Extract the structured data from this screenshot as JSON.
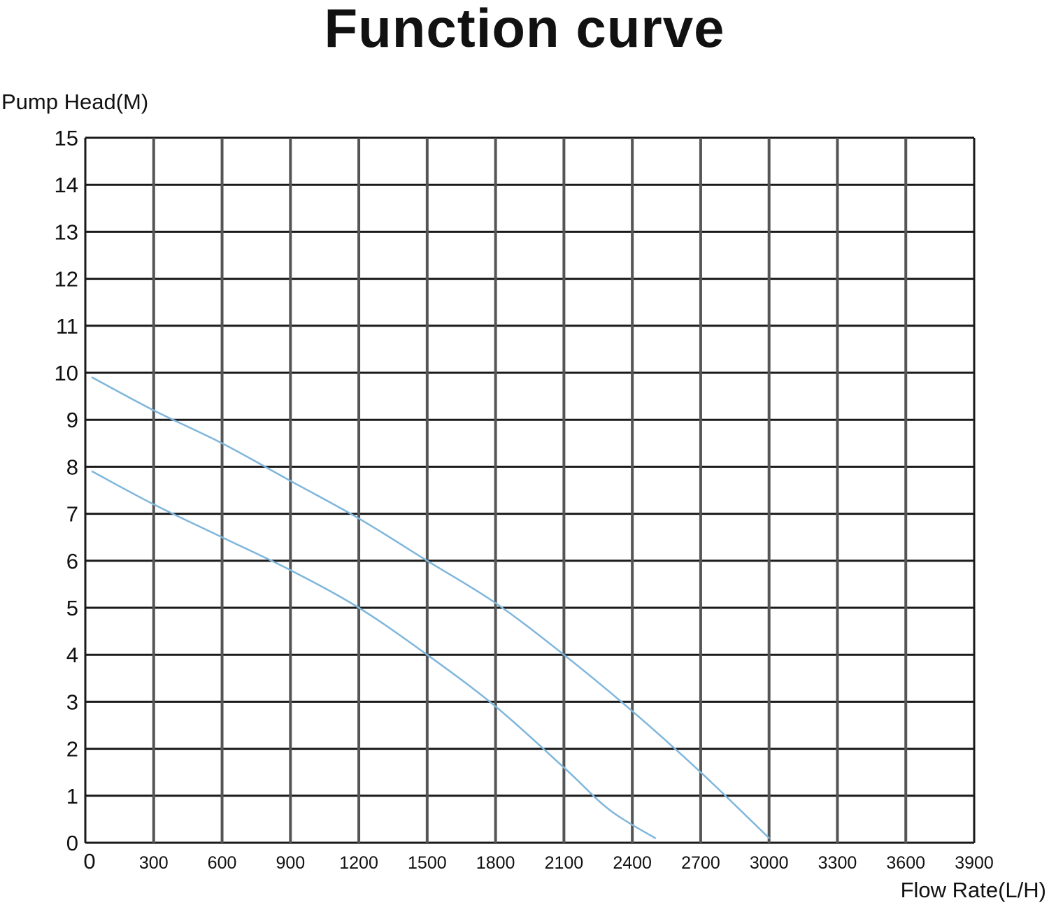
{
  "chart_data": {
    "type": "line",
    "title": "Function curve",
    "ylabel": "Pump Head(M)",
    "xlabel": "Flow Rate(L/H)",
    "xlim": [
      0,
      3900
    ],
    "ylim": [
      0,
      15
    ],
    "xticks": [
      0,
      300,
      600,
      900,
      1200,
      1500,
      1800,
      2100,
      2400,
      2700,
      3000,
      3300,
      3600,
      3900
    ],
    "yticks": [
      0,
      1,
      2,
      3,
      4,
      5,
      6,
      7,
      8,
      9,
      10,
      11,
      12,
      13,
      14,
      15
    ],
    "grid": true,
    "line_color": "#7fb6dc",
    "series": [
      {
        "x": [
          0,
          300,
          600,
          900,
          1200,
          1500,
          1800,
          2100,
          2400,
          2700,
          3000
        ],
        "y": [
          9.9,
          9.2,
          8.5,
          7.7,
          6.9,
          6.0,
          5.1,
          4.0,
          2.8,
          1.5,
          0.1
        ]
      },
      {
        "x": [
          0,
          300,
          600,
          900,
          1200,
          1500,
          1800,
          2100,
          2300,
          2500
        ],
        "y": [
          7.9,
          7.2,
          6.5,
          5.8,
          5.0,
          4.0,
          2.9,
          1.6,
          0.7,
          0.1
        ]
      }
    ]
  }
}
